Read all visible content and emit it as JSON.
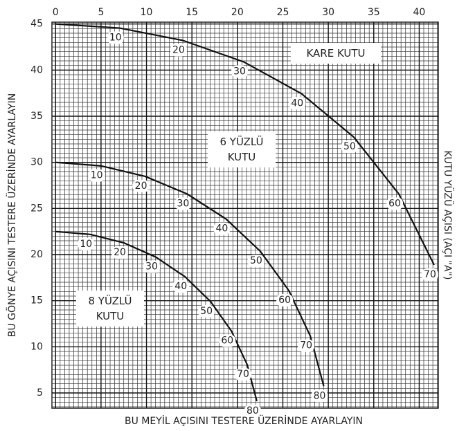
{
  "chart_data": {
    "type": "line",
    "x_label": "BU MEYİL AÇISINI TESTERE ÜZERİNDE AYARLAYIN",
    "y_label": "BU GÖNYE AÇISINI TESTERE ÜZERİNDE AYARLAYIN",
    "y2_label": "KUTU YÜZÜ AÇISI (AÇI \"A\")",
    "xlim": [
      -0.4,
      42.1
    ],
    "ylim": [
      3.35,
      45.2
    ],
    "xticks": [
      0,
      5,
      10,
      15,
      20,
      25,
      30,
      35,
      40
    ],
    "yticks": [
      5,
      10,
      15,
      20,
      25,
      30,
      35,
      40,
      45
    ],
    "grid": true,
    "series": [
      {
        "name": "KARE KUTU",
        "color": "#111111",
        "x": [
          0,
          7.05,
          13.99,
          20.7,
          27.04,
          32.8,
          37.76,
          41.64
        ],
        "values": [
          45,
          44.56,
          43.22,
          40.89,
          37.45,
          32.74,
          26.57,
          18.88
        ],
        "point_labels": [
          null,
          10,
          20,
          30,
          40,
          50,
          60,
          70
        ]
      },
      {
        "name": "6 YÜZLÜ KUTU",
        "color": "#111111",
        "x": [
          0,
          4.98,
          9.85,
          14.48,
          18.75,
          22.52,
          25.66,
          28.02,
          29.5
        ],
        "values": [
          30,
          29.62,
          28.48,
          26.57,
          23.86,
          20.36,
          16.1,
          11.17,
          5.73
        ],
        "point_labels": [
          null,
          10,
          20,
          30,
          40,
          50,
          60,
          70,
          80
        ]
      },
      {
        "name": "8 YÜZLÜ KUTU",
        "color": "#111111",
        "x": [
          0,
          3.81,
          7.52,
          11.03,
          14.24,
          17.05,
          19.35,
          21.08,
          22.14
        ],
        "values": [
          22.5,
          22.19,
          21.27,
          19.73,
          17.6,
          14.91,
          11.7,
          8.06,
          4.11
        ],
        "point_labels": [
          null,
          10,
          20,
          30,
          40,
          50,
          60,
          70,
          80
        ]
      }
    ]
  }
}
